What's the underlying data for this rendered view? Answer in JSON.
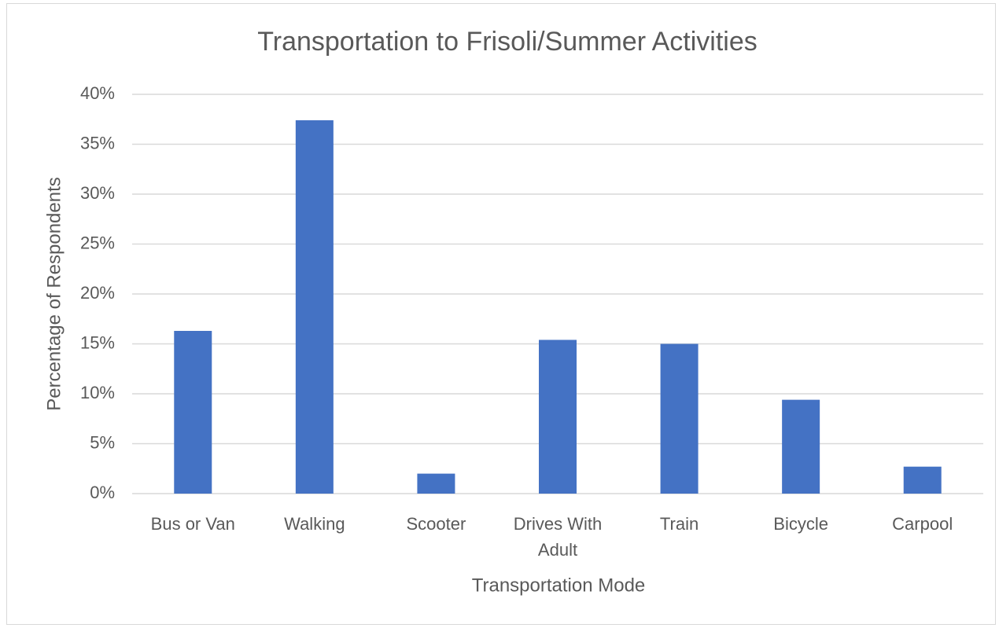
{
  "chart_data": {
    "type": "bar",
    "title": "Transportation to Frisoli/Summer Activities",
    "x_label": "Transportation Mode",
    "y_label": "Percentage of Respondents",
    "categories": [
      "Bus or Van",
      "Walking",
      "Scooter",
      "Drives With Adult",
      "Train",
      "Bicycle",
      "Carpool"
    ],
    "values": [
      16.3,
      37.4,
      2.0,
      15.4,
      15.0,
      9.4,
      2.7
    ],
    "color": "#4472c4",
    "ylim": [
      0,
      40
    ],
    "yticks": [
      {
        "value": 0,
        "label": "0%"
      },
      {
        "value": 5,
        "label": "5%"
      },
      {
        "value": 10,
        "label": "10%"
      },
      {
        "value": 15,
        "label": "15%"
      },
      {
        "value": 20,
        "label": "20%"
      },
      {
        "value": 25,
        "label": "25%"
      },
      {
        "value": 30,
        "label": "30%"
      },
      {
        "value": 35,
        "label": "35%"
      },
      {
        "value": 40,
        "label": "40%"
      }
    ],
    "grid": true
  }
}
